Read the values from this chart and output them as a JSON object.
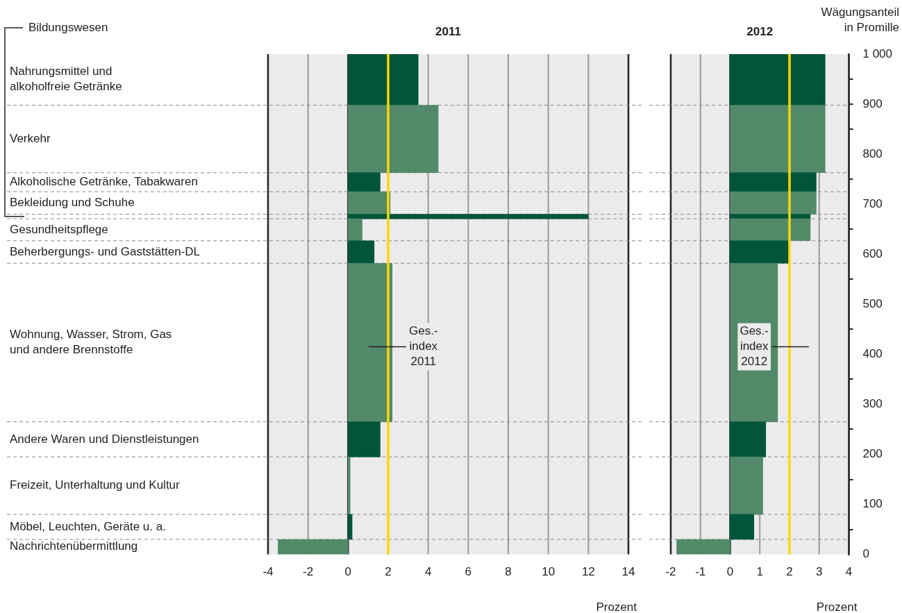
{
  "chart_data": [
    {
      "type": "bar",
      "orientation": "horizontal",
      "title": "2011",
      "xlabel": "Prozent",
      "categories": [
        "Nahrungsmittel und\nalkoholfreie Getränke",
        "Verkehr",
        "Alkoholische Getränke, Tabakwaren",
        "Bekleidung und Schuhe",
        null,
        "Gesundheitspflege",
        "Beherbergungs- und Gaststätten-DL",
        "Wohnung, Wasser, Strom, Gas\nund andere Brennstoffe",
        "Andere Waren und Dienstleistungen",
        "Freizeit, Unterhaltung und Kultur",
        "Möbel, Leuchten, Geräte u. a.",
        "Nachrichtenübermittlung"
      ],
      "values": [
        3.5,
        4.5,
        1.6,
        2.1,
        12,
        0.7,
        1.3,
        2.2,
        1.6,
        0.1,
        0.2,
        -3.5
      ],
      "colors": [
        "#00553a",
        "#528a69",
        "#00553a",
        "#528a69",
        "#00553a",
        "#528a69",
        "#00553a",
        "#528a69",
        "#00553a",
        "#528a69",
        "#00553a",
        "#528a69"
      ],
      "xlim": [
        -4,
        14
      ],
      "xticks": [
        -4,
        -2,
        0,
        2,
        4,
        6,
        8,
        10,
        12,
        14
      ],
      "ref_lines": [
        {
          "axis": "x",
          "value": 2.0,
          "label": "Ges.-\nindex\n2011",
          "color": "#ffd700"
        }
      ],
      "annotations": [
        "Bildungswesen"
      ],
      "grid": true
    },
    {
      "type": "bar",
      "orientation": "horizontal",
      "title": "2012",
      "xlabel": "Prozent",
      "ylabel": "Wägungsanteil\nin Promille",
      "x": [
        949,
        830.5,
        744,
        702.5,
        675.5,
        649,
        604.5,
        423.5,
        230,
        137.5,
        55,
        15
      ],
      "values": [
        3.2,
        3.2,
        2.9,
        2.9,
        2.7,
        2.7,
        2.0,
        1.6,
        1.2,
        1.1,
        0.8,
        -1.8
      ],
      "colors": [
        "#00553a",
        "#528a69",
        "#00553a",
        "#528a69",
        "#00553a",
        "#528a69",
        "#00553a",
        "#528a69",
        "#00553a",
        "#528a69",
        "#00553a",
        "#528a69"
      ],
      "xlim": [
        -2,
        4
      ],
      "xticks": [
        -2,
        -1,
        0,
        1,
        2,
        3,
        4
      ],
      "ylim": [
        0,
        1000
      ],
      "yticks": [
        0,
        100,
        200,
        300,
        400,
        500,
        600,
        700,
        800,
        {
          "value": 1000,
          "label": "1 000"
        },
        900
      ],
      "ref_lines": [
        {
          "axis": "x",
          "value": 2.0,
          "label": "Ges.-\nindex\n2012",
          "color": "#ffd700"
        }
      ],
      "grid": true
    }
  ]
}
